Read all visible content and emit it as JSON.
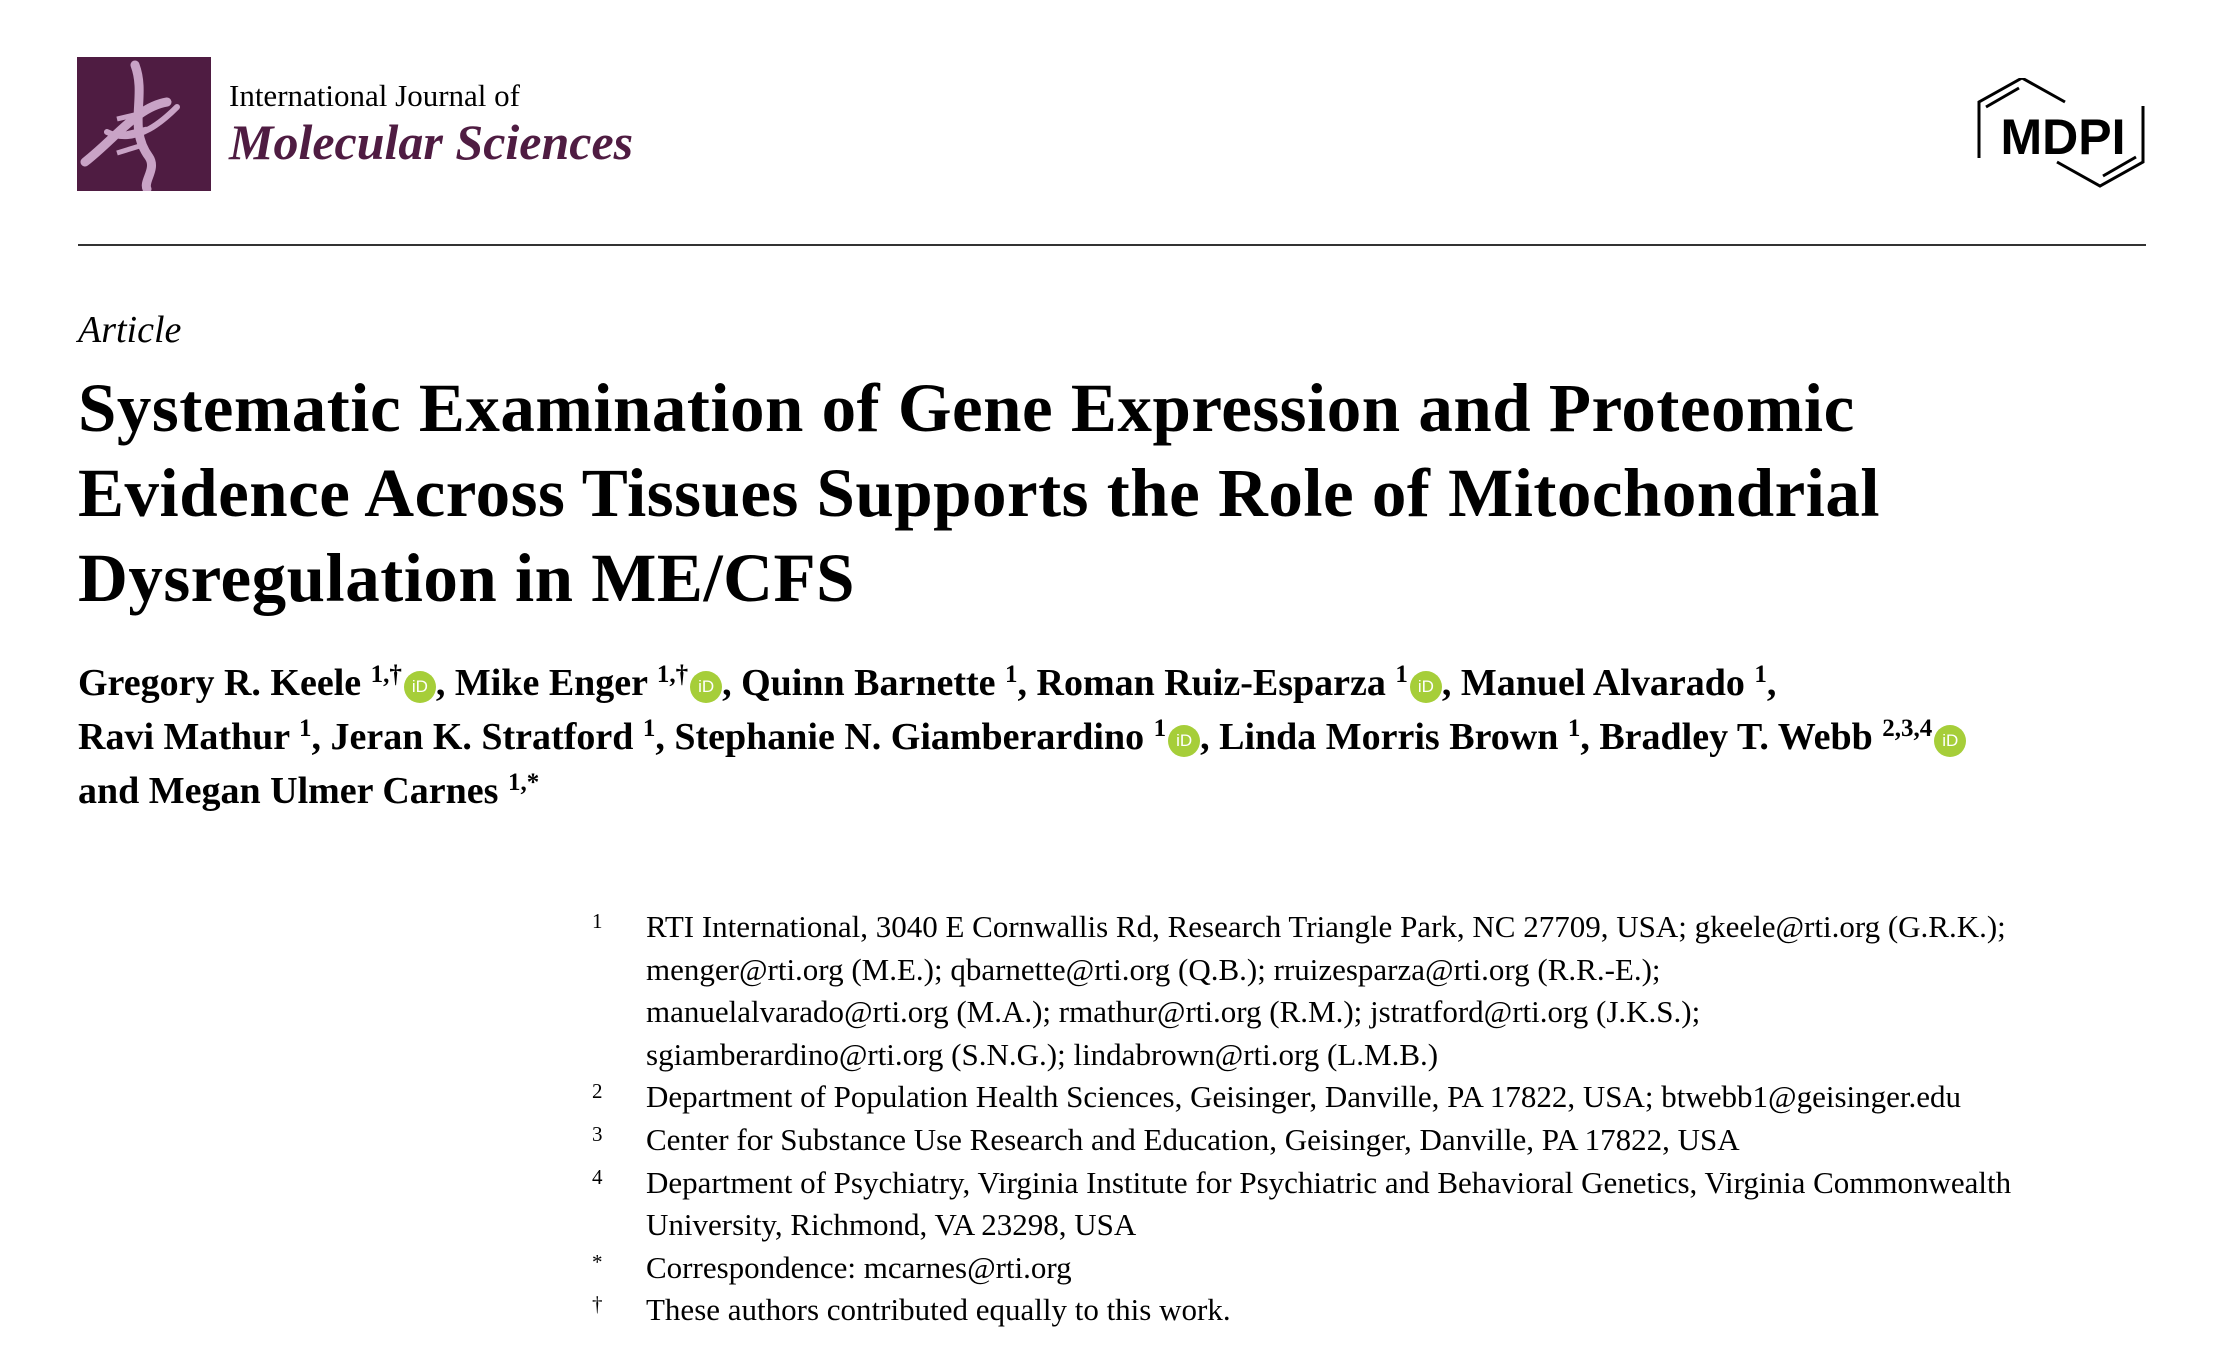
{
  "header": {
    "journal_line1": "International Journal of",
    "journal_line2": "Molecular Sciences",
    "publisher_logo": "MDPI",
    "brand_color": "#4f1c42"
  },
  "article_type": "Article",
  "title_lines": [
    "Systematic Examination of Gene Expression and Proteomic",
    "Evidence Across Tissues Supports the Role of Mitochondrial",
    "Dysregulation in ME/CFS"
  ],
  "authors": [
    {
      "name": "Gregory R. Keele",
      "sup": "1,†",
      "orcid": true,
      "sep": ", "
    },
    {
      "name": "Mike Enger",
      "sup": "1,†",
      "orcid": true,
      "sep": ", "
    },
    {
      "name": "Quinn Barnette",
      "sup": "1",
      "orcid": false,
      "sep": ", "
    },
    {
      "name": "Roman Ruiz-Esparza",
      "sup": "1",
      "orcid": true,
      "sep": ", "
    },
    {
      "name": "Manuel Alvarado",
      "sup": "1",
      "orcid": false,
      "sep": ","
    },
    {
      "name": "Ravi Mathur",
      "sup": "1",
      "orcid": false,
      "sep": ", "
    },
    {
      "name": "Jeran K. Stratford",
      "sup": "1",
      "orcid": false,
      "sep": ", "
    },
    {
      "name": "Stephanie N. Giamberardino",
      "sup": "1",
      "orcid": true,
      "sep": ", "
    },
    {
      "name": "Linda Morris Brown",
      "sup": "1",
      "orcid": false,
      "sep": ", "
    },
    {
      "name": "Bradley T. Webb",
      "sup": "2,3,4",
      "orcid": true,
      "sep": ""
    },
    {
      "name": "and Megan Ulmer Carnes",
      "sup": "1,*",
      "orcid": false,
      "sep": ""
    }
  ],
  "orcid_icon_label": "iD",
  "orcid_color": "#a6ce39",
  "affiliations": [
    {
      "mark": "1",
      "lines": [
        "RTI International, 3040 E Cornwallis Rd, Research Triangle Park, NC 27709, USA; gkeele@rti.org (G.R.K.);",
        "menger@rti.org (M.E.); qbarnette@rti.org (Q.B.); rruizesparza@rti.org (R.R.-E.);",
        "manuelalvarado@rti.org (M.A.); rmathur@rti.org (R.M.); jstratford@rti.org (J.K.S.);",
        "sgiamberardino@rti.org (S.N.G.); lindabrown@rti.org (L.M.B.)"
      ]
    },
    {
      "mark": "2",
      "lines": [
        "Department of Population Health Sciences, Geisinger, Danville, PA 17822, USA; btwebb1@geisinger.edu"
      ]
    },
    {
      "mark": "3",
      "lines": [
        "Center for Substance Use Research and Education, Geisinger, Danville, PA 17822, USA"
      ]
    },
    {
      "mark": "4",
      "lines": [
        "Department of Psychiatry, Virginia Institute for Psychiatric and Behavioral Genetics, Virginia Commonwealth",
        "University, Richmond, VA 23298, USA"
      ]
    },
    {
      "mark": "*",
      "lines": [
        "Correspondence: mcarnes@rti.org"
      ]
    },
    {
      "mark": "†",
      "lines": [
        "These authors contributed equally to this work."
      ]
    }
  ]
}
